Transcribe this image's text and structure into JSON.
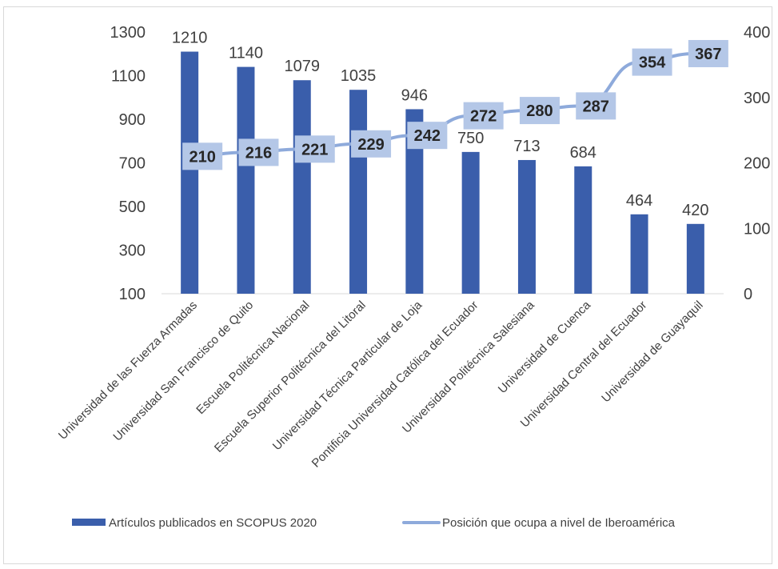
{
  "chart_data": {
    "type": "bar",
    "categories": [
      "Universidad de las Fuerza Armadas",
      "Universidad San Francisco de Quito",
      "Escuela Politécnica Nacional",
      "Escuela Superior Politécnica del Litoral",
      "Universidad Técnica Particular de Loja",
      "Pontificia Universidad Católica del Ecuador",
      "Universidad Politécnica Salesiana",
      "Universidad de Cuenca",
      "Universidad Central del Ecuador",
      "Universidad de Guayaquil"
    ],
    "series": [
      {
        "name": "Artículos publicados en SCOPUS 2020",
        "type": "bar",
        "axis": "left",
        "color": "#3a5eab",
        "values": [
          1210,
          1140,
          1079,
          1035,
          946,
          750,
          713,
          684,
          464,
          420
        ],
        "labels": [
          "1210",
          "1140",
          "1079",
          "1035",
          "946",
          "750",
          "713",
          "684",
          "464",
          "420"
        ]
      },
      {
        "name": "Posición que ocupa a nivel de Iberoamérica",
        "type": "line",
        "axis": "right",
        "color": "#8eaadb",
        "values": [
          210,
          216,
          221,
          229,
          242,
          272,
          280,
          287,
          354,
          367
        ],
        "labels": [
          "210",
          "216",
          "221",
          "229",
          "242",
          "272",
          "280",
          "287",
          "354",
          "367"
        ]
      }
    ],
    "y_left": {
      "range": [
        100,
        1300
      ],
      "ticks": [
        "100",
        "300",
        "500",
        "700",
        "900",
        "1100",
        "1300"
      ]
    },
    "y_right": {
      "range": [
        0,
        400
      ],
      "ticks": [
        "0",
        "100",
        "200",
        "300",
        "400"
      ]
    },
    "grid": false,
    "legend_position": "bottom",
    "label_box_color": "#b4c7e7"
  }
}
